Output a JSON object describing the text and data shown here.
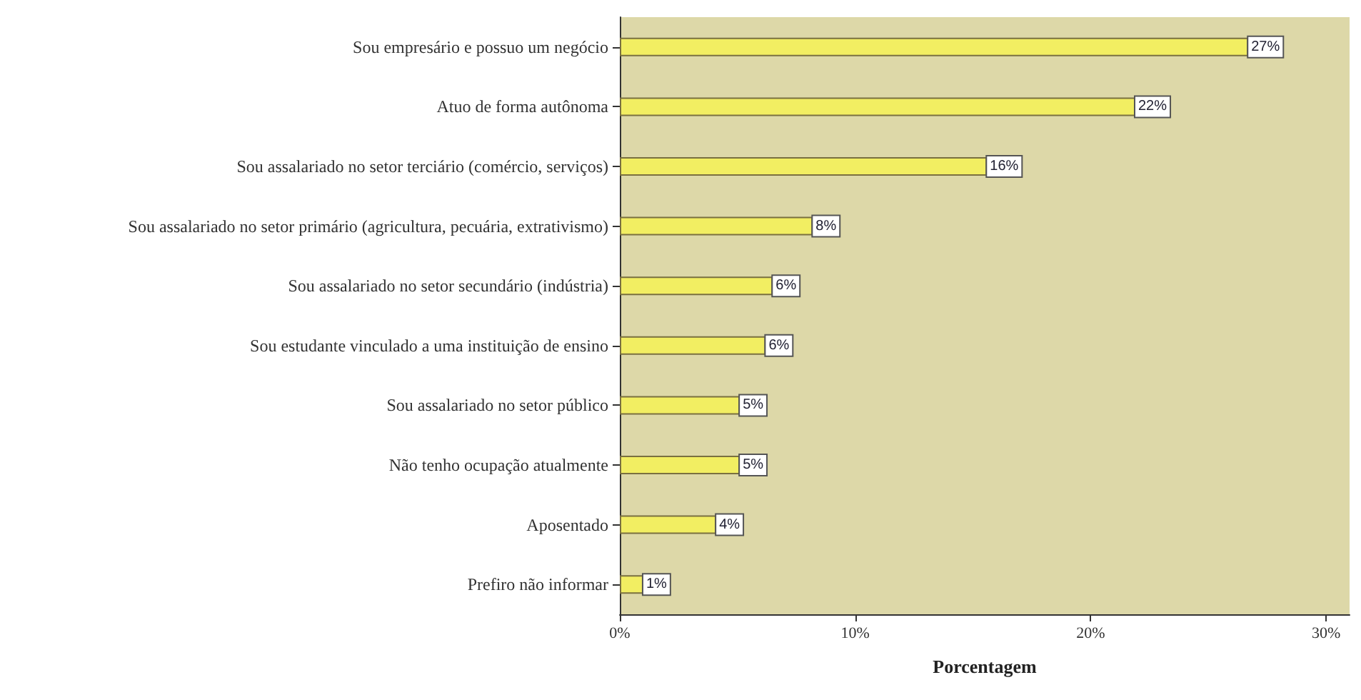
{
  "chart_data": {
    "type": "bar",
    "orientation": "horizontal",
    "xlabel": "Porcentagem",
    "categories": [
      "Sou empresário e possuo um negócio",
      "Atuo de forma autônoma",
      "Sou assalariado no setor terciário (comércio, serviços)",
      "Sou assalariado no setor primário (agricultura, pecuária, extrativismo)",
      "Sou assalariado no setor secundário (indústria)",
      "Sou estudante vinculado a uma instituição de ensino",
      "Sou assalariado no setor público",
      "Não tenho ocupação atualmente",
      "Aposentado",
      "Prefiro não informar"
    ],
    "values": [
      26.7,
      21.9,
      15.6,
      8.2,
      6.5,
      6.2,
      5.1,
      5.1,
      4.1,
      1.0
    ],
    "value_labels": [
      "27%",
      "22%",
      "16%",
      "8%",
      "6%",
      "6%",
      "5%",
      "5%",
      "4%",
      "1%"
    ],
    "color": "#f2ee62",
    "xlim": [
      0,
      31
    ],
    "xticks": [
      {
        "value": 0,
        "label": "0%"
      },
      {
        "value": 10,
        "label": "10%"
      },
      {
        "value": 20,
        "label": "20%"
      },
      {
        "value": 30,
        "label": "30%"
      }
    ],
    "grid": false
  }
}
